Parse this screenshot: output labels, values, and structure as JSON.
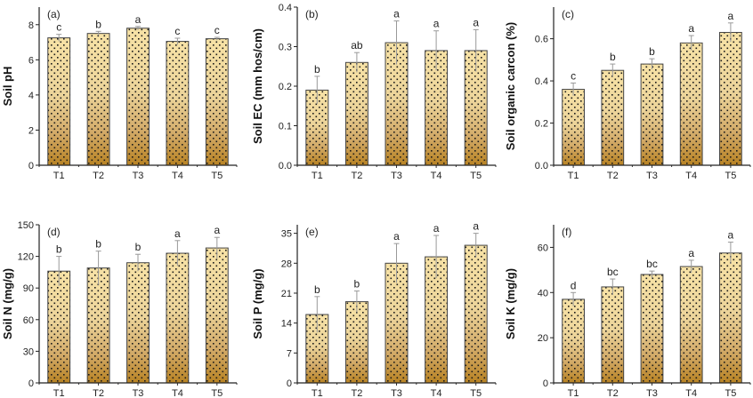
{
  "chart_data": [
    {
      "type": "bar",
      "panel_label": "(a)",
      "ylabel": "Soil pH",
      "categories": [
        "T1",
        "T2",
        "T3",
        "T4",
        "T5"
      ],
      "values": [
        7.25,
        7.5,
        7.8,
        7.05,
        7.2
      ],
      "errors": [
        0.2,
        0.12,
        0.1,
        0.18,
        0.08
      ],
      "significance": [
        "c",
        "b",
        "a",
        "c",
        "c"
      ],
      "ylim": [
        0,
        9
      ],
      "yticks": [
        0,
        2,
        4,
        6,
        8
      ],
      "ytick_labels": [
        "0",
        "2",
        "4",
        "6",
        "8"
      ]
    },
    {
      "type": "bar",
      "panel_label": "(b)",
      "ylabel": "Soil EC (mm hos/cm)",
      "categories": [
        "T1",
        "T2",
        "T3",
        "T4",
        "T5"
      ],
      "values": [
        0.19,
        0.26,
        0.31,
        0.29,
        0.29
      ],
      "errors": [
        0.035,
        0.025,
        0.055,
        0.05,
        0.053
      ],
      "significance": [
        "b",
        "ab",
        "a",
        "a",
        "a"
      ],
      "ylim": [
        0,
        0.4
      ],
      "yticks": [
        0,
        0.1,
        0.2,
        0.3,
        0.4
      ],
      "ytick_labels": [
        "0.0",
        "0.1",
        "0.2",
        "0.3",
        "0.4"
      ]
    },
    {
      "type": "bar",
      "panel_label": "(c)",
      "ylabel": "Soil organic carcon (%)",
      "categories": [
        "T1",
        "T2",
        "T3",
        "T4",
        "T5"
      ],
      "values": [
        0.36,
        0.45,
        0.48,
        0.58,
        0.63
      ],
      "errors": [
        0.03,
        0.03,
        0.025,
        0.035,
        0.045
      ],
      "significance": [
        "c",
        "b",
        "b",
        "a",
        "a"
      ],
      "ylim": [
        0,
        0.75
      ],
      "yticks": [
        0,
        0.2,
        0.4,
        0.6
      ],
      "ytick_labels": [
        "0.0",
        "0.2",
        "0.4",
        "0.6"
      ]
    },
    {
      "type": "bar",
      "panel_label": "(d)",
      "ylabel": "Soil N (mg/g)",
      "categories": [
        "T1",
        "T2",
        "T3",
        "T4",
        "T5"
      ],
      "values": [
        106,
        109,
        114,
        123,
        128
      ],
      "errors": [
        14,
        16,
        8,
        12,
        10
      ],
      "significance": [
        "b",
        "b",
        "b",
        "a",
        "a"
      ],
      "ylim": [
        0,
        150
      ],
      "yticks": [
        0,
        30,
        60,
        90,
        120,
        150
      ],
      "ytick_labels": [
        "0",
        "30",
        "60",
        "90",
        "120",
        "150"
      ]
    },
    {
      "type": "bar",
      "panel_label": "(e)",
      "ylabel": "Soil P (mg/g)",
      "categories": [
        "T1",
        "T2",
        "T3",
        "T4",
        "T5"
      ],
      "values": [
        16,
        19,
        28,
        29.5,
        32.2
      ],
      "errors": [
        4.2,
        2.5,
        4.6,
        5,
        2.8
      ],
      "significance": [
        "b",
        "b",
        "a",
        "a",
        "a"
      ],
      "ylim": [
        0,
        37
      ],
      "yticks": [
        0,
        7,
        14,
        21,
        28,
        35
      ],
      "ytick_labels": [
        "0",
        "7",
        "14",
        "21",
        "28",
        "35"
      ]
    },
    {
      "type": "bar",
      "panel_label": "(f)",
      "ylabel": "Soil K (mg/g)",
      "categories": [
        "T1",
        "T2",
        "T3",
        "T4",
        "T5"
      ],
      "values": [
        37,
        42.5,
        48,
        51.5,
        57.5
      ],
      "errors": [
        3,
        3.5,
        1.5,
        2.8,
        4.8
      ],
      "significance": [
        "d",
        "bc",
        "bc",
        "a",
        "a"
      ],
      "ylim": [
        0,
        70
      ],
      "yticks": [
        0,
        20,
        40,
        60
      ],
      "ytick_labels": [
        "0",
        "20",
        "40",
        "60"
      ]
    }
  ]
}
